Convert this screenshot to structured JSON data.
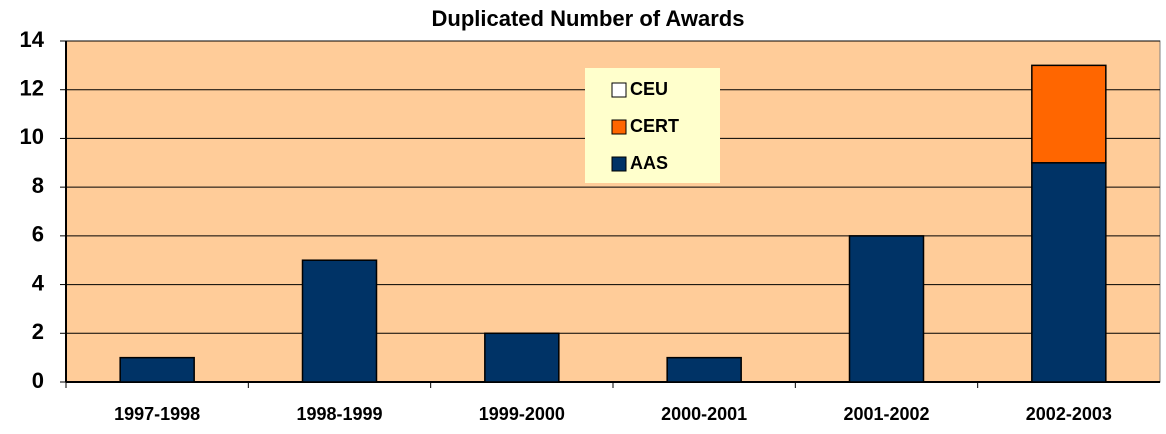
{
  "chart_data": {
    "type": "stacked-bar",
    "title": "Duplicated Number of Awards",
    "categories": [
      "1997-1998",
      "1998-1999",
      "1999-2000",
      "2000-2001",
      "2001-2002",
      "2002-2003"
    ],
    "series": [
      {
        "name": "AAS",
        "color": "#003366",
        "values": [
          1,
          5,
          2,
          1,
          6,
          9
        ]
      },
      {
        "name": "CERT",
        "color": "#ff6600",
        "values": [
          0,
          0,
          0,
          0,
          0,
          4
        ]
      },
      {
        "name": "CEU",
        "color": "#ffffff",
        "values": [
          0,
          0,
          0,
          0,
          0,
          0
        ]
      }
    ],
    "ylim": [
      0,
      14
    ],
    "yticks": [
      0,
      2,
      4,
      6,
      8,
      10,
      12,
      14
    ],
    "grid": true,
    "plot_background": "#ffcc99",
    "legend_background": "#ffffcc"
  }
}
